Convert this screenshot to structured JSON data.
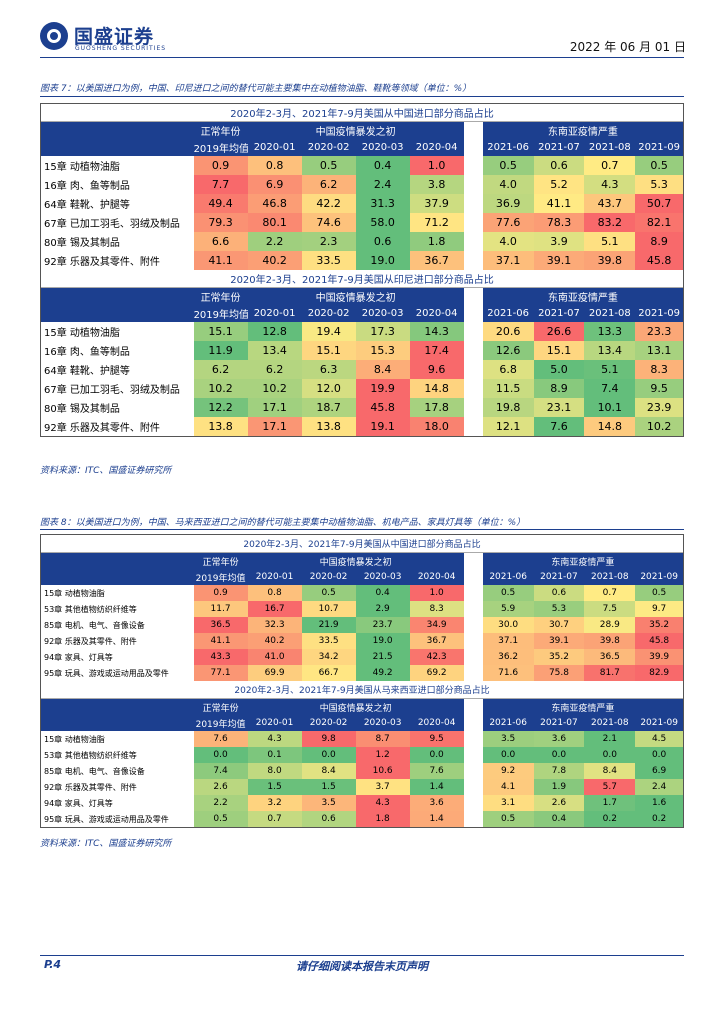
{
  "header": {
    "brand": "国盛证券",
    "brand_en": "GUOSHENG SECURITIES",
    "date": "2022 年 06 月 01 日"
  },
  "fig7": {
    "caption": "图表 7：以美国进口为例，中国、印尼进口之间的替代可能主要集中在动植物油脂、鞋靴等领域（单位：%）",
    "source": "资料来源：ITC、国盛证券研究所",
    "blocks": [
      {
        "title": "2020年2-3月、2021年7-9月美国从中国进口部分商品占比",
        "groups": [
          "正常年份",
          "中国疫情暴发之初",
          "东南亚疫情严重"
        ],
        "cols": [
          "2019年均值",
          "2020-01",
          "2020-02",
          "2020-03",
          "2020-04",
          "2021-06",
          "2021-07",
          "2021-08",
          "2021-09"
        ],
        "rows": [
          {
            "label": "15章 动植物油脂",
            "values": [
              "0.9",
              "0.8",
              "0.5",
              "0.4",
              "1.0",
              "0.5",
              "0.6",
              "0.7",
              "0.5"
            ]
          },
          {
            "label": "16章 肉、鱼等制品",
            "values": [
              "7.7",
              "6.9",
              "6.2",
              "2.4",
              "3.8",
              "4.0",
              "5.2",
              "4.3",
              "5.3"
            ]
          },
          {
            "label": "64章 鞋靴、护腿等",
            "values": [
              "49.4",
              "46.8",
              "42.2",
              "31.3",
              "37.9",
              "36.9",
              "41.1",
              "43.7",
              "50.7"
            ]
          },
          {
            "label": "67章 已加工羽毛、羽绒及制品",
            "values": [
              "79.3",
              "80.1",
              "74.6",
              "58.0",
              "71.2",
              "77.6",
              "78.3",
              "83.2",
              "82.1"
            ]
          },
          {
            "label": "80章 锡及其制品",
            "values": [
              "6.6",
              "2.2",
              "2.3",
              "0.6",
              "1.8",
              "4.0",
              "3.9",
              "5.1",
              "8.9"
            ]
          },
          {
            "label": "92章 乐器及其零件、附件",
            "values": [
              "41.1",
              "40.2",
              "33.5",
              "19.0",
              "36.7",
              "37.1",
              "39.1",
              "39.8",
              "45.8"
            ]
          }
        ]
      },
      {
        "title": "2020年2-3月、2021年7-9月美国从印尼进口部分商品占比",
        "groups": [
          "正常年份",
          "中国疫情暴发之初",
          "东南亚疫情严重"
        ],
        "cols": [
          "2019年均值",
          "2020-01",
          "2020-02",
          "2020-03",
          "2020-04",
          "2021-06",
          "2021-07",
          "2021-08",
          "2021-09"
        ],
        "rows": [
          {
            "label": "15章 动植物油脂",
            "values": [
              "15.1",
              "12.8",
              "19.4",
              "17.3",
              "14.3",
              "20.6",
              "26.6",
              "13.3",
              "23.3"
            ]
          },
          {
            "label": "16章 肉、鱼等制品",
            "values": [
              "11.9",
              "13.4",
              "15.1",
              "15.3",
              "17.4",
              "12.6",
              "15.1",
              "13.4",
              "13.1"
            ]
          },
          {
            "label": "64章 鞋靴、护腿等",
            "values": [
              "6.2",
              "6.2",
              "6.3",
              "8.4",
              "9.6",
              "6.8",
              "5.0",
              "5.1",
              "8.3"
            ]
          },
          {
            "label": "67章 已加工羽毛、羽绒及制品",
            "values": [
              "10.2",
              "10.2",
              "12.0",
              "19.9",
              "14.8",
              "11.5",
              "8.9",
              "7.4",
              "9.5"
            ]
          },
          {
            "label": "80章 锡及其制品",
            "values": [
              "12.2",
              "17.1",
              "18.7",
              "45.8",
              "17.8",
              "19.8",
              "23.1",
              "10.1",
              "23.9"
            ]
          },
          {
            "label": "92章 乐器及其零件、附件",
            "values": [
              "13.8",
              "17.1",
              "13.8",
              "19.1",
              "18.0",
              "12.1",
              "7.6",
              "14.8",
              "10.2"
            ]
          }
        ]
      }
    ]
  },
  "fig8": {
    "caption": "图表 8：以美国进口为例，中国、马来西亚进口之间的替代可能主要集中动植物油脂、机电产品、家具灯具等（单位：%）",
    "source": "资料来源：ITC、国盛证券研究所",
    "blocks": [
      {
        "title": "2020年2-3月、2021年7-9月美国从中国进口部分商品占比",
        "groups": [
          "正常年份",
          "中国疫情暴发之初",
          "东南亚疫情严重"
        ],
        "cols": [
          "2019年均值",
          "2020-01",
          "2020-02",
          "2020-03",
          "2020-04",
          "2021-06",
          "2021-07",
          "2021-08",
          "2021-09"
        ],
        "rows": [
          {
            "label": "15章 动植物油脂",
            "values": [
              "0.9",
              "0.8",
              "0.5",
              "0.4",
              "1.0",
              "0.5",
              "0.6",
              "0.7",
              "0.5"
            ]
          },
          {
            "label": "53章 其他植物纺织纤维等",
            "values": [
              "11.7",
              "16.7",
              "10.7",
              "2.9",
              "8.3",
              "5.9",
              "5.3",
              "7.5",
              "9.7"
            ]
          },
          {
            "label": "85章 电机、电气、音像设备",
            "values": [
              "36.5",
              "32.3",
              "21.9",
              "23.7",
              "34.9",
              "30.0",
              "30.7",
              "28.9",
              "35.2"
            ]
          },
          {
            "label": "92章 乐器及其零件、附件",
            "values": [
              "41.1",
              "40.2",
              "33.5",
              "19.0",
              "36.7",
              "37.1",
              "39.1",
              "39.8",
              "45.8"
            ]
          },
          {
            "label": "94章 家具、灯具等",
            "values": [
              "43.3",
              "41.0",
              "34.2",
              "21.5",
              "42.3",
              "36.2",
              "35.2",
              "36.5",
              "39.9"
            ]
          },
          {
            "label": "95章 玩具、游戏或运动用品及零件",
            "values": [
              "77.1",
              "69.9",
              "66.7",
              "49.2",
              "69.2",
              "71.6",
              "75.8",
              "81.7",
              "82.9"
            ]
          }
        ]
      },
      {
        "title": "2020年2-3月、2021年7-9月美国从马来西亚进口部分商品占比",
        "groups": [
          "正常年份",
          "中国疫情暴发之初",
          "东南亚疫情严重"
        ],
        "cols": [
          "2019年均值",
          "2020-01",
          "2020-02",
          "2020-03",
          "2020-04",
          "2021-06",
          "2021-07",
          "2021-08",
          "2021-09"
        ],
        "rows": [
          {
            "label": "15章 动植物油脂",
            "values": [
              "7.6",
              "4.3",
              "9.8",
              "8.7",
              "9.5",
              "3.5",
              "3.6",
              "2.1",
              "4.5"
            ]
          },
          {
            "label": "53章 其他植物纺织纤维等",
            "values": [
              "0.0",
              "0.1",
              "0.0",
              "1.2",
              "0.0",
              "0.0",
              "0.0",
              "0.0",
              "0.0"
            ]
          },
          {
            "label": "85章 电机、电气、音像设备",
            "values": [
              "7.4",
              "8.0",
              "8.4",
              "10.6",
              "7.6",
              "9.2",
              "7.8",
              "8.4",
              "6.9"
            ]
          },
          {
            "label": "92章 乐器及其零件、附件",
            "values": [
              "2.6",
              "1.5",
              "1.5",
              "3.7",
              "1.4",
              "4.1",
              "1.9",
              "5.7",
              "2.4"
            ]
          },
          {
            "label": "94章 家具、灯具等",
            "values": [
              "2.2",
              "3.2",
              "3.5",
              "4.3",
              "3.6",
              "3.1",
              "2.6",
              "1.7",
              "1.6"
            ]
          },
          {
            "label": "95章 玩具、游戏或运动用品及零件",
            "values": [
              "0.5",
              "0.7",
              "0.6",
              "1.8",
              "1.4",
              "0.5",
              "0.4",
              "0.2",
              "0.2"
            ]
          }
        ]
      }
    ]
  },
  "footer": {
    "page": "P.4",
    "disclaimer": "请仔细阅读本报告末页声明"
  },
  "colors": {
    "brand": "#1c3f8f",
    "low": "#63be7b",
    "mid": "#ffeb84",
    "high": "#f8696b"
  }
}
